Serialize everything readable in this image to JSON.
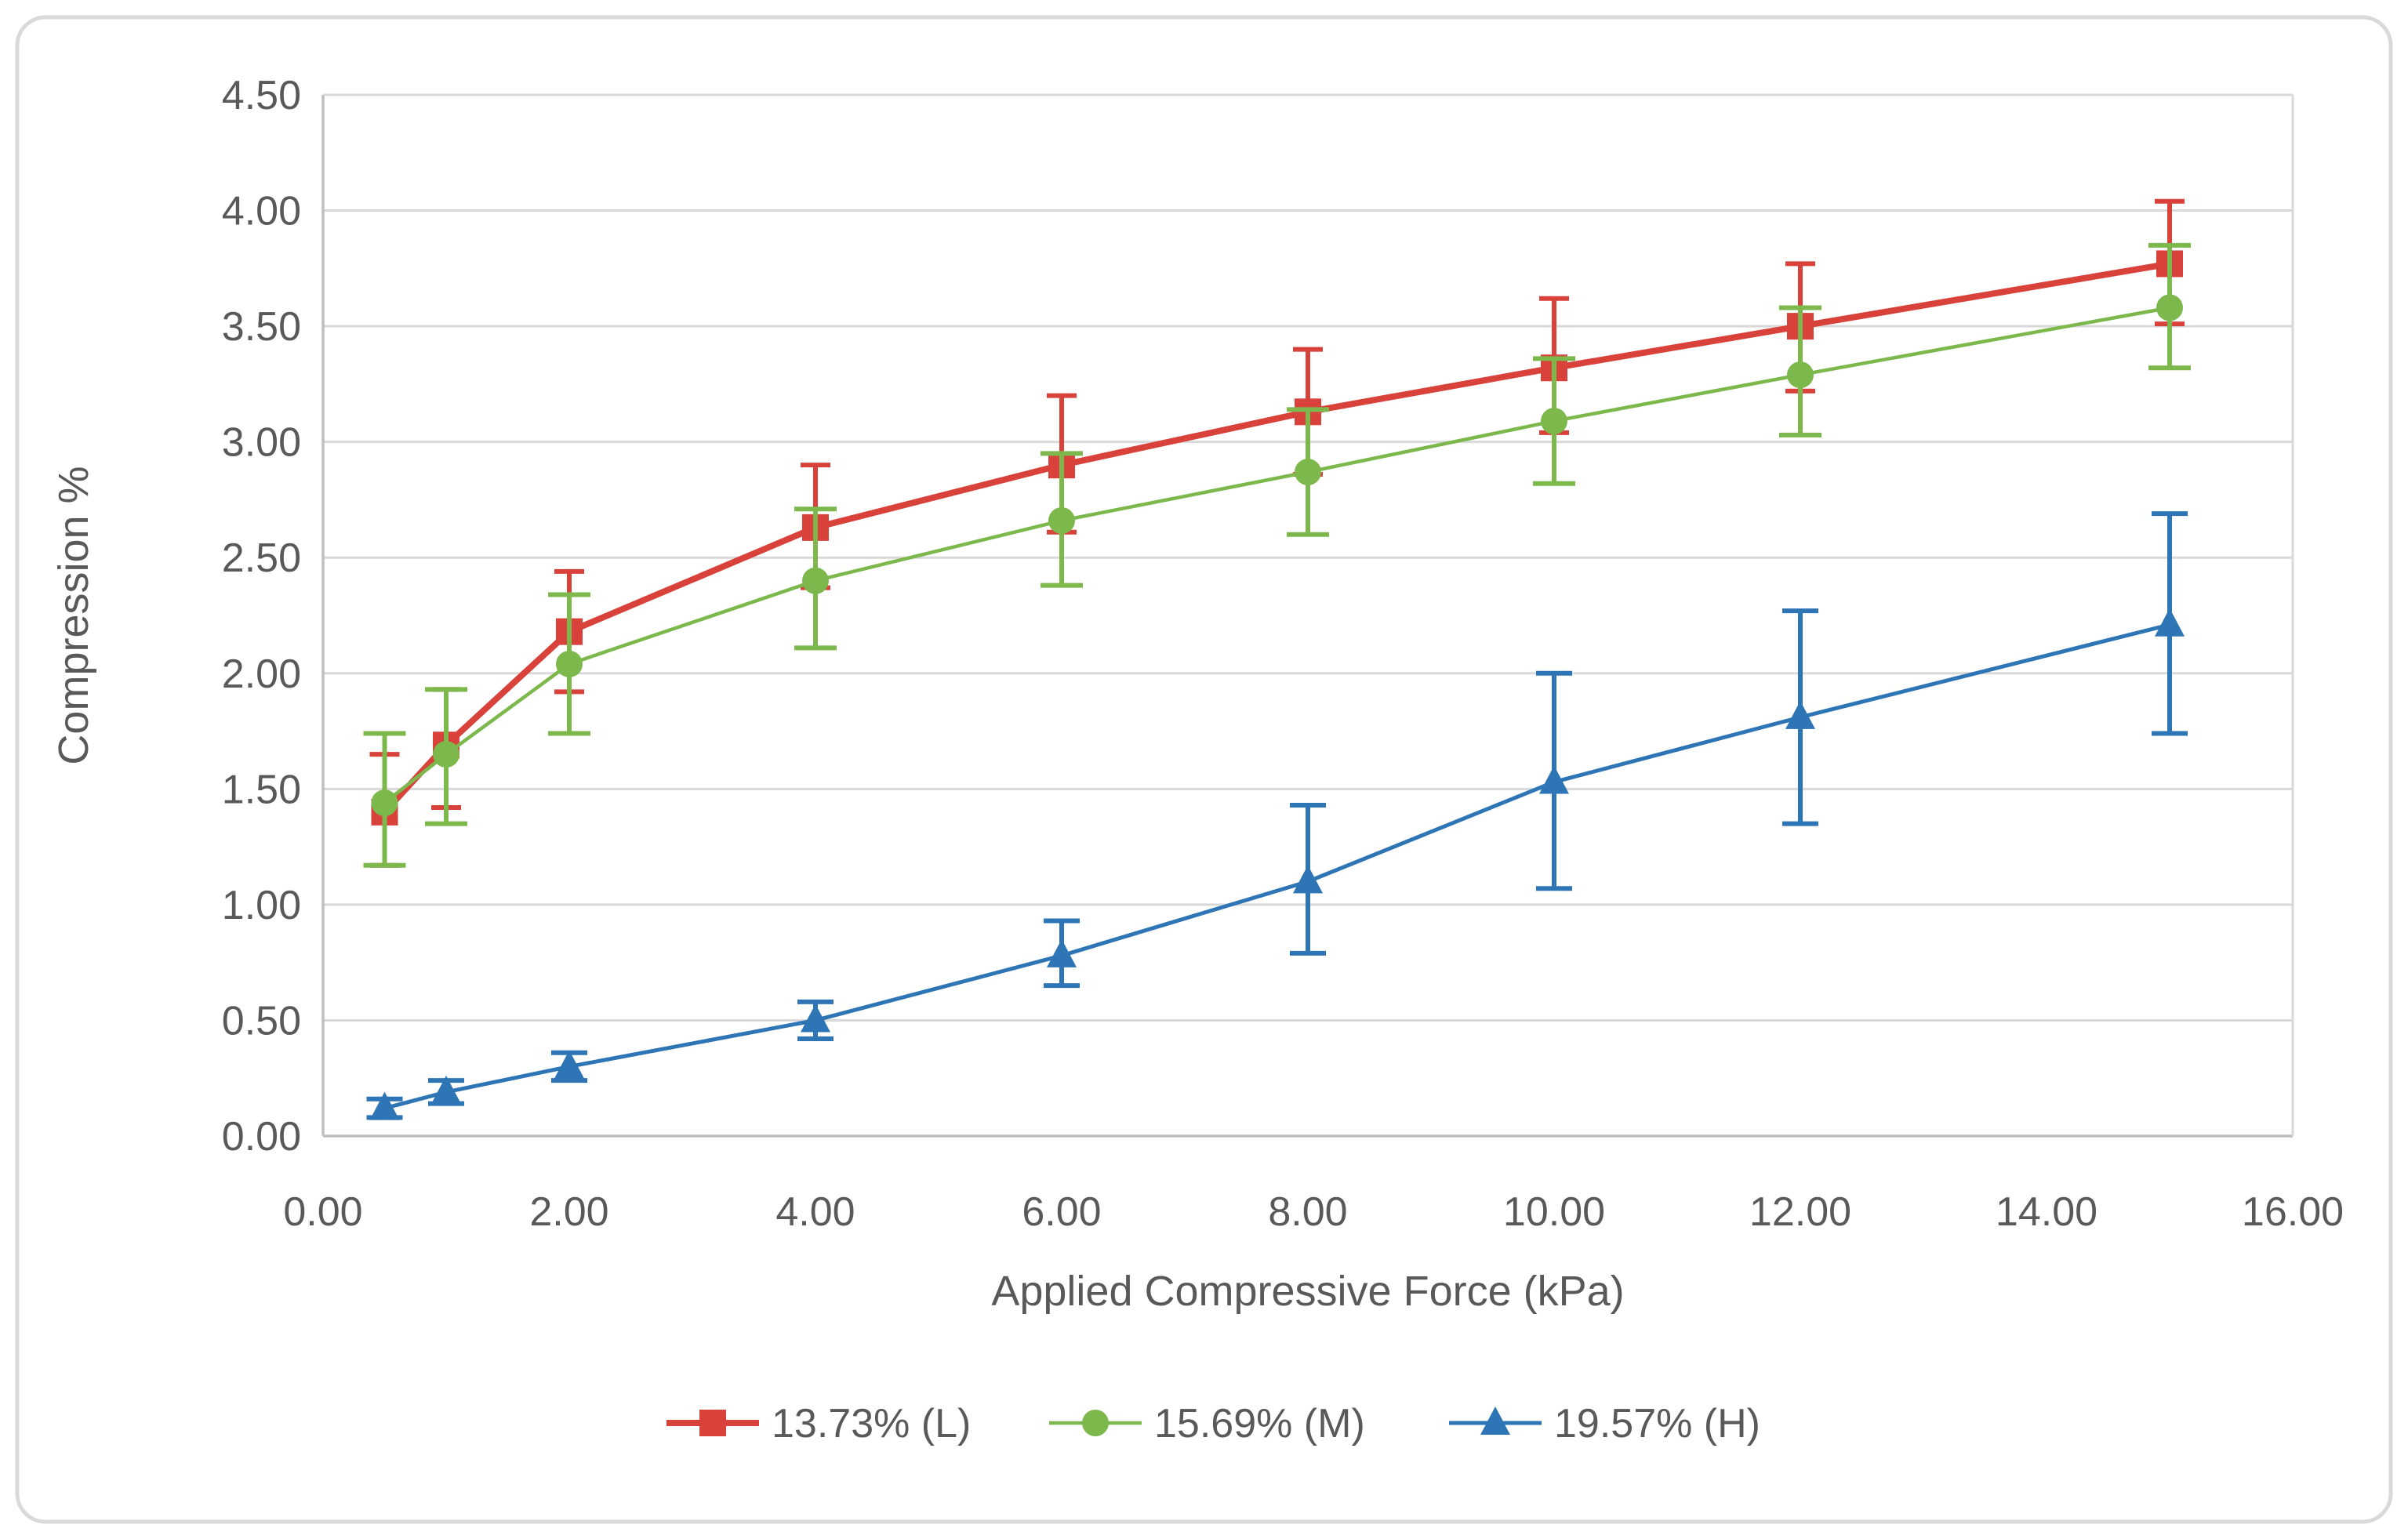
{
  "figure": {
    "background": "#ffffff",
    "border_color": "#d9d9d9",
    "text_color": "#595959",
    "gridline_color": "#d9d9d9",
    "axis_line_color": "#bfbfbf"
  },
  "chart_data": {
    "type": "line",
    "title": "",
    "xlabel": "Applied Compressive Force (kPa)",
    "ylabel": "Compression %",
    "xlim": [
      0,
      16
    ],
    "ylim": [
      0,
      4.5
    ],
    "grid": true,
    "legend_position": "bottom",
    "x_ticks": [
      "0.00",
      "2.00",
      "4.00",
      "6.00",
      "8.00",
      "10.00",
      "12.00",
      "14.00",
      "16.00"
    ],
    "x_tick_values": [
      0,
      2,
      4,
      6,
      8,
      10,
      12,
      14,
      16
    ],
    "y_ticks": [
      "0.00",
      "0.50",
      "1.00",
      "1.50",
      "2.00",
      "2.50",
      "3.00",
      "3.50",
      "4.00",
      "4.50"
    ],
    "y_tick_values": [
      0,
      0.5,
      1,
      1.5,
      2,
      2.5,
      3,
      3.5,
      4,
      4.5
    ],
    "x": [
      0.5,
      1,
      2,
      4,
      6,
      8,
      10,
      12,
      15
    ],
    "series": [
      {
        "name": "13.73% (L)",
        "color": "#d8423b",
        "marker": "square",
        "values": [
          1.4,
          1.69,
          2.18,
          2.63,
          2.9,
          3.13,
          3.32,
          3.5,
          3.77
        ],
        "err_up": [
          0.25,
          0.24,
          0.26,
          0.27,
          0.3,
          0.27,
          0.3,
          0.27,
          0.27
        ],
        "err_down": [
          0.23,
          0.27,
          0.26,
          0.26,
          0.29,
          0.27,
          0.28,
          0.28,
          0.26
        ]
      },
      {
        "name": "15.69% (M)",
        "color": "#7cb84c",
        "marker": "circle",
        "values": [
          1.44,
          1.65,
          2.04,
          2.4,
          2.66,
          2.87,
          3.09,
          3.29,
          3.58
        ],
        "err_up": [
          0.3,
          0.28,
          0.3,
          0.31,
          0.29,
          0.27,
          0.27,
          0.29,
          0.27
        ],
        "err_down": [
          0.27,
          0.3,
          0.3,
          0.29,
          0.28,
          0.27,
          0.27,
          0.26,
          0.26
        ]
      },
      {
        "name": "19.57% (H)",
        "color": "#2e75b6",
        "marker": "triangle",
        "values": [
          0.12,
          0.19,
          0.3,
          0.5,
          0.78,
          1.1,
          1.53,
          1.81,
          2.21
        ],
        "err_up": [
          0.04,
          0.05,
          0.06,
          0.08,
          0.15,
          0.33,
          0.47,
          0.46,
          0.48
        ],
        "err_down": [
          0.04,
          0.05,
          0.06,
          0.08,
          0.13,
          0.31,
          0.46,
          0.46,
          0.47
        ]
      }
    ]
  }
}
